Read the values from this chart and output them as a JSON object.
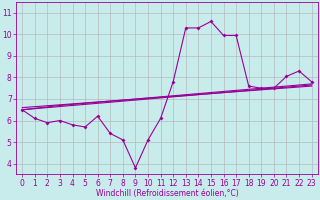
{
  "background_color": "#c8ecec",
  "line_color": "#990099",
  "grid_color": "#b0b0b0",
  "xlabel": "Windchill (Refroidissement éolien,°C)",
  "xlabel_color": "#990099",
  "ylim": [
    3.5,
    11.5
  ],
  "xlim": [
    -0.5,
    23.5
  ],
  "yticks": [
    4,
    5,
    6,
    7,
    8,
    9,
    10,
    11
  ],
  "xticks": [
    0,
    1,
    2,
    3,
    4,
    5,
    6,
    7,
    8,
    9,
    10,
    11,
    12,
    13,
    14,
    15,
    16,
    17,
    18,
    19,
    20,
    21,
    22,
    23
  ],
  "line1_x": [
    0,
    1,
    2,
    3,
    4,
    5,
    6,
    7,
    8,
    9,
    10,
    11,
    12,
    13,
    14,
    15,
    16,
    17,
    18,
    19,
    20,
    21,
    22,
    23
  ],
  "line1_y": [
    6.5,
    6.1,
    5.9,
    6.0,
    5.8,
    5.7,
    6.2,
    5.4,
    5.1,
    3.8,
    5.1,
    6.1,
    7.8,
    10.3,
    10.3,
    10.6,
    9.95,
    9.95,
    7.6,
    7.5,
    7.5,
    8.05,
    8.3,
    7.8
  ],
  "line2_x": [
    0,
    3,
    23
  ],
  "line2_y": [
    6.5,
    6.7,
    7.7
  ],
  "line3_x": [
    0,
    23
  ],
  "line3_y": [
    6.6,
    7.6
  ],
  "line4_x": [
    0,
    23
  ],
  "line4_y": [
    6.5,
    7.65
  ],
  "tick_fontsize": 5.5,
  "xlabel_fontsize": 5.5
}
